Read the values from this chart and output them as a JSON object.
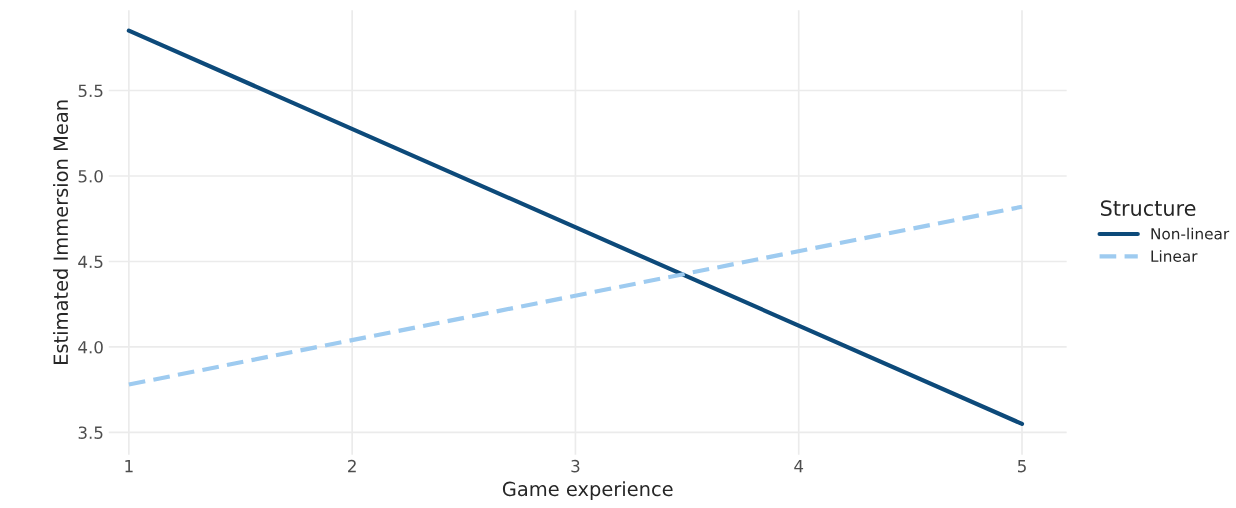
{
  "chart_data": {
    "type": "line",
    "xlabel": "Game experience",
    "ylabel": "Estimated Immersion Mean",
    "legend_title": "Structure",
    "x": [
      1,
      5
    ],
    "series": [
      {
        "name": "Non-linear",
        "color": "#0d4a7a",
        "values": [
          5.85,
          3.55
        ],
        "line_style": "solid"
      },
      {
        "name": "Linear",
        "color": "#9ecbf0",
        "values": [
          3.78,
          4.82
        ],
        "line_style": "dashed"
      }
    ],
    "xlim": [
      0.91,
      5.2
    ],
    "xticks": [
      1,
      2,
      3,
      4,
      5
    ],
    "ylim": [
      3.37,
      5.97
    ],
    "yticks": [
      3.5,
      {
        "value": 4,
        "label": "4.0"
      },
      4.5,
      {
        "value": 5,
        "label": "5.0"
      },
      5.5
    ],
    "grid": true,
    "legend": "right"
  }
}
